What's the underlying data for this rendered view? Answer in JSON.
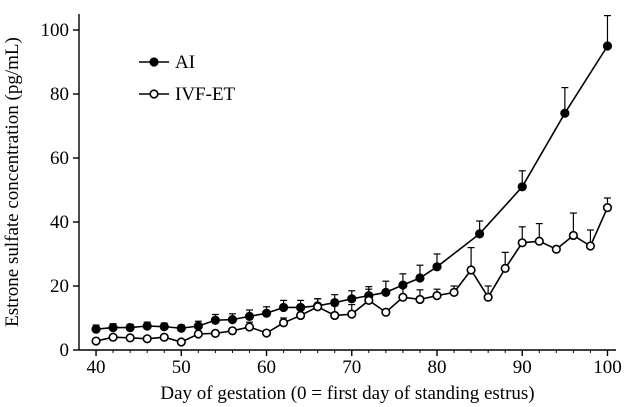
{
  "chart_data": {
    "type": "line",
    "title": "",
    "xlabel": "Day of gestation (0 = first day of standing estrus)",
    "ylabel": "Estrone sulfate concentration (pg/mL)",
    "xlim": [
      38,
      101
    ],
    "ylim": [
      0,
      105
    ],
    "xticks": [
      40,
      50,
      60,
      70,
      80,
      90,
      100
    ],
    "yticks": [
      0,
      20,
      40,
      60,
      80,
      100
    ],
    "grid": false,
    "legend_position": "top-left",
    "series": [
      {
        "name": "AI",
        "marker": "filled-circle",
        "color": "#000000",
        "points": [
          {
            "x": 40,
            "y": 6.5,
            "err": 1.3
          },
          {
            "x": 42,
            "y": 7.0,
            "err": 1.2
          },
          {
            "x": 44,
            "y": 7.0,
            "err": 1.0
          },
          {
            "x": 46,
            "y": 7.5,
            "err": 1.2
          },
          {
            "x": 48,
            "y": 7.3,
            "err": 1.1
          },
          {
            "x": 50,
            "y": 6.8,
            "err": 1.0
          },
          {
            "x": 52,
            "y": 7.5,
            "err": 1.5
          },
          {
            "x": 54,
            "y": 9.3,
            "err": 1.8
          },
          {
            "x": 56,
            "y": 9.5,
            "err": 1.8
          },
          {
            "x": 58,
            "y": 10.5,
            "err": 2.0
          },
          {
            "x": 60,
            "y": 11.5,
            "err": 2.0
          },
          {
            "x": 62,
            "y": 13.3,
            "err": 2.2
          },
          {
            "x": 64,
            "y": 13.3,
            "err": 2.2
          },
          {
            "x": 66,
            "y": 13.8,
            "err": 2.2
          },
          {
            "x": 68,
            "y": 14.8,
            "err": 2.5
          },
          {
            "x": 70,
            "y": 16.0,
            "err": 2.5
          },
          {
            "x": 72,
            "y": 17.0,
            "err": 2.8
          },
          {
            "x": 74,
            "y": 18.0,
            "err": 3.5
          },
          {
            "x": 76,
            "y": 20.3,
            "err": 3.5
          },
          {
            "x": 78,
            "y": 22.5,
            "err": 4.0
          },
          {
            "x": 80,
            "y": 26.0,
            "err": 4.0
          },
          {
            "x": 85,
            "y": 36.3,
            "err": 4.0
          },
          {
            "x": 90,
            "y": 51.0,
            "err": 5.0
          },
          {
            "x": 95,
            "y": 74.0,
            "err": 8.0
          },
          {
            "x": 100,
            "y": 95.0,
            "err": 9.5
          }
        ]
      },
      {
        "name": "IVF-ET",
        "marker": "open-circle",
        "color": "#000000",
        "points": [
          {
            "x": 40,
            "y": 2.8,
            "err": 0
          },
          {
            "x": 42,
            "y": 4.0,
            "err": 0
          },
          {
            "x": 44,
            "y": 3.8,
            "err": 0
          },
          {
            "x": 46,
            "y": 3.5,
            "err": 0
          },
          {
            "x": 48,
            "y": 4.0,
            "err": 0
          },
          {
            "x": 50,
            "y": 2.5,
            "err": 0
          },
          {
            "x": 52,
            "y": 5.0,
            "err": 0
          },
          {
            "x": 54,
            "y": 5.2,
            "err": 0
          },
          {
            "x": 56,
            "y": 6.0,
            "err": 0
          },
          {
            "x": 58,
            "y": 7.2,
            "err": 1.5
          },
          {
            "x": 60,
            "y": 5.3,
            "err": 0
          },
          {
            "x": 62,
            "y": 8.5,
            "err": 1.5
          },
          {
            "x": 64,
            "y": 10.8,
            "err": 2.0
          },
          {
            "x": 66,
            "y": 13.5,
            "err": 2.5
          },
          {
            "x": 68,
            "y": 10.8,
            "err": 3.0
          },
          {
            "x": 70,
            "y": 11.2,
            "err": 3.0
          },
          {
            "x": 72,
            "y": 15.5,
            "err": 3.5
          },
          {
            "x": 74,
            "y": 11.8,
            "err": 0
          },
          {
            "x": 76,
            "y": 16.5,
            "err": 3.0
          },
          {
            "x": 78,
            "y": 15.8,
            "err": 3.0
          },
          {
            "x": 80,
            "y": 17.0,
            "err": 2.0
          },
          {
            "x": 82,
            "y": 18.0,
            "err": 2.0
          },
          {
            "x": 84,
            "y": 25.0,
            "err": 7.0
          },
          {
            "x": 86,
            "y": 16.5,
            "err": 3.5
          },
          {
            "x": 88,
            "y": 25.5,
            "err": 5.0
          },
          {
            "x": 90,
            "y": 33.5,
            "err": 5.0
          },
          {
            "x": 92,
            "y": 34.0,
            "err": 5.5
          },
          {
            "x": 94,
            "y": 31.5,
            "err": 0
          },
          {
            "x": 96,
            "y": 35.8,
            "err": 7.0
          },
          {
            "x": 98,
            "y": 32.5,
            "err": 5.0
          },
          {
            "x": 100,
            "y": 44.5,
            "err": 3.0
          }
        ]
      }
    ]
  }
}
